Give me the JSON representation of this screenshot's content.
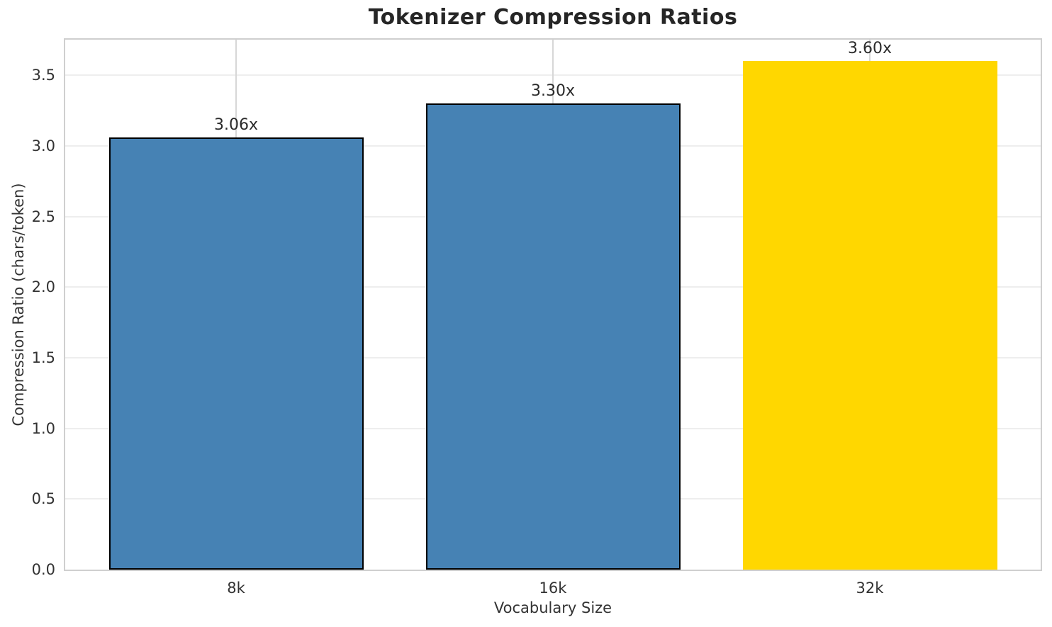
{
  "chart_data": {
    "type": "bar",
    "title": "Tokenizer Compression Ratios",
    "xlabel": "Vocabulary Size",
    "ylabel": "Compression Ratio (chars/token)",
    "categories": [
      "8k",
      "16k",
      "32k"
    ],
    "values": [
      3.06,
      3.3,
      3.6
    ],
    "bar_labels": [
      "3.06x",
      "3.30x",
      "3.60x"
    ],
    "yticks": [
      "0.0",
      "0.5",
      "1.0",
      "1.5",
      "2.0",
      "2.5",
      "3.0",
      "3.5"
    ],
    "ylim": [
      0,
      3.77
    ],
    "grid": true,
    "legend": "none",
    "colors": {
      "bar_default": "#4682B4",
      "bar_highlight": "#FFD700",
      "bar_fills": [
        "#4682B4",
        "#4682B4",
        "#FFD700"
      ],
      "bar_edges": [
        "#000000",
        "#000000",
        "none"
      ],
      "hgrid": "#eeeeee",
      "vgrid": "#d7d7d7",
      "spine": "#cfcfcf",
      "title_text": "#262626",
      "label_text": "#333333",
      "value_text": "#2b2b2b",
      "background": "#ffffff"
    }
  }
}
